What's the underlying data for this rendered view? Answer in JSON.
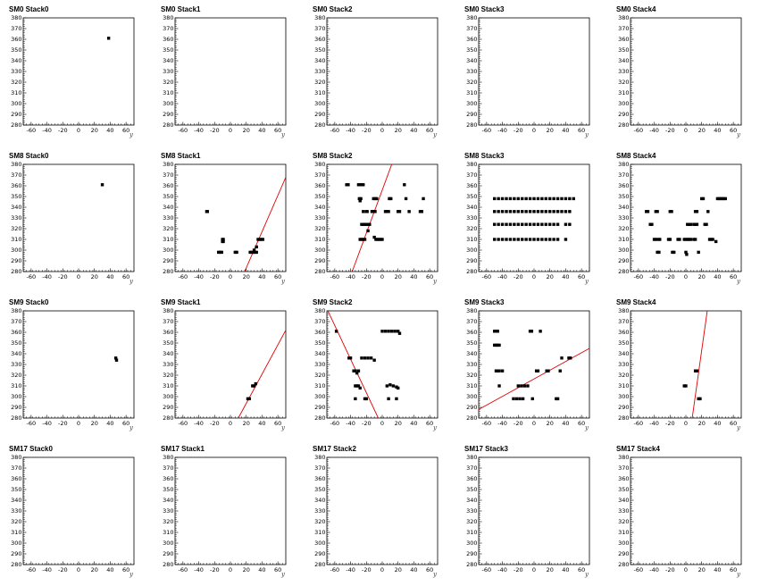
{
  "chart_data": {
    "type": "scatter",
    "xlabel": "y",
    "xlim": [
      -70,
      70
    ],
    "ylim": [
      280,
      380
    ],
    "x_ticks": [
      "-60",
      "-40",
      "-20",
      "0",
      "20",
      "40",
      "60"
    ],
    "y_ticks": [
      "380",
      "370",
      "360",
      "350",
      "340",
      "330",
      "320",
      "310",
      "300",
      "290",
      "280"
    ],
    "fit_line_color": "#e00000",
    "marker_color": "#000000",
    "panels": [
      {
        "title": "SM0 Stack0",
        "points": [
          [
            38,
            361
          ]
        ],
        "lines": []
      },
      {
        "title": "SM0 Stack1",
        "points": [],
        "lines": []
      },
      {
        "title": "SM0 Stack2",
        "points": [],
        "lines": []
      },
      {
        "title": "SM0 Stack3",
        "points": [],
        "lines": []
      },
      {
        "title": "SM0 Stack4",
        "points": [],
        "lines": []
      },
      {
        "title": "SM8 Stack0",
        "points": [
          [
            30,
            361
          ]
        ],
        "lines": []
      },
      {
        "title": "SM8 Stack1",
        "points": [
          [
            -30,
            336
          ],
          [
            -29,
            336
          ],
          [
            -10,
            310
          ],
          [
            -9,
            310
          ],
          [
            -10,
            308
          ],
          [
            -9,
            308
          ],
          [
            -15,
            298
          ],
          [
            -13,
            298
          ],
          [
            -11,
            298
          ],
          [
            6,
            298
          ],
          [
            8,
            298
          ],
          [
            25,
            298
          ],
          [
            27,
            298
          ],
          [
            29,
            298
          ],
          [
            31,
            298
          ],
          [
            33,
            298
          ],
          [
            35,
            310
          ],
          [
            37,
            310
          ],
          [
            39,
            310
          ],
          [
            41,
            310
          ],
          [
            30,
            300
          ],
          [
            33,
            303
          ]
        ],
        "lines": [
          [
            [
              18,
              280
            ],
            [
              70,
              368
            ]
          ]
        ]
      },
      {
        "title": "SM8 Stack2",
        "points": [
          [
            -45,
            361
          ],
          [
            -43,
            361
          ],
          [
            -30,
            361
          ],
          [
            -28,
            361
          ],
          [
            -26,
            361
          ],
          [
            -24,
            361
          ],
          [
            -29,
            348
          ],
          [
            -28,
            346
          ],
          [
            -27,
            348
          ],
          [
            -11,
            348
          ],
          [
            -9,
            348
          ],
          [
            -7,
            348
          ],
          [
            9,
            348
          ],
          [
            11,
            348
          ],
          [
            28,
            361
          ],
          [
            30,
            348
          ],
          [
            52,
            348
          ],
          [
            -24,
            336
          ],
          [
            -20,
            336
          ],
          [
            -19,
            336
          ],
          [
            -13,
            336
          ],
          [
            -11,
            336
          ],
          [
            -10,
            336
          ],
          [
            -9,
            336
          ],
          [
            4,
            336
          ],
          [
            6,
            336
          ],
          [
            8,
            336
          ],
          [
            20,
            336
          ],
          [
            22,
            336
          ],
          [
            34,
            336
          ],
          [
            48,
            336
          ],
          [
            50,
            336
          ],
          [
            -26,
            324
          ],
          [
            -24,
            324
          ],
          [
            -22,
            324
          ],
          [
            -20,
            324
          ],
          [
            -18,
            324
          ],
          [
            -16,
            324
          ],
          [
            -28,
            310
          ],
          [
            -26,
            310
          ],
          [
            -24,
            310
          ],
          [
            -22,
            310
          ],
          [
            -8,
            310
          ],
          [
            -6,
            310
          ],
          [
            -4,
            310
          ],
          [
            -2,
            310
          ],
          [
            0,
            310
          ],
          [
            -10,
            312
          ],
          [
            -18,
            318
          ]
        ],
        "lines": [
          [
            [
              -38,
              280
            ],
            [
              12,
              380
            ]
          ]
        ]
      },
      {
        "title": "SM8 Stack3",
        "points": [
          [
            -50,
            348
          ],
          [
            -45,
            348
          ],
          [
            -40,
            348
          ],
          [
            -35,
            348
          ],
          [
            -30,
            348
          ],
          [
            -25,
            348
          ],
          [
            -20,
            348
          ],
          [
            -15,
            348
          ],
          [
            -10,
            348
          ],
          [
            -5,
            348
          ],
          [
            0,
            348
          ],
          [
            5,
            348
          ],
          [
            10,
            348
          ],
          [
            15,
            348
          ],
          [
            20,
            348
          ],
          [
            25,
            348
          ],
          [
            30,
            348
          ],
          [
            35,
            348
          ],
          [
            40,
            348
          ],
          [
            45,
            348
          ],
          [
            50,
            348
          ],
          [
            -50,
            336
          ],
          [
            -45,
            336
          ],
          [
            -40,
            336
          ],
          [
            -35,
            336
          ],
          [
            -30,
            336
          ],
          [
            -25,
            336
          ],
          [
            -20,
            336
          ],
          [
            -15,
            336
          ],
          [
            -10,
            336
          ],
          [
            -5,
            336
          ],
          [
            0,
            336
          ],
          [
            5,
            336
          ],
          [
            10,
            336
          ],
          [
            15,
            336
          ],
          [
            20,
            336
          ],
          [
            25,
            336
          ],
          [
            30,
            336
          ],
          [
            35,
            336
          ],
          [
            40,
            336
          ],
          [
            45,
            336
          ],
          [
            -50,
            324
          ],
          [
            -45,
            324
          ],
          [
            -40,
            324
          ],
          [
            -35,
            324
          ],
          [
            -30,
            324
          ],
          [
            -25,
            324
          ],
          [
            -20,
            324
          ],
          [
            -15,
            324
          ],
          [
            -10,
            324
          ],
          [
            -5,
            324
          ],
          [
            0,
            324
          ],
          [
            5,
            324
          ],
          [
            10,
            324
          ],
          [
            15,
            324
          ],
          [
            20,
            324
          ],
          [
            25,
            324
          ],
          [
            30,
            324
          ],
          [
            40,
            324
          ],
          [
            45,
            324
          ],
          [
            -50,
            310
          ],
          [
            -45,
            310
          ],
          [
            -40,
            310
          ],
          [
            -35,
            310
          ],
          [
            -30,
            310
          ],
          [
            -25,
            310
          ],
          [
            -20,
            310
          ],
          [
            -15,
            310
          ],
          [
            -10,
            310
          ],
          [
            -5,
            310
          ],
          [
            0,
            310
          ],
          [
            5,
            310
          ],
          [
            10,
            310
          ],
          [
            15,
            310
          ],
          [
            20,
            310
          ],
          [
            25,
            310
          ],
          [
            30,
            310
          ],
          [
            40,
            310
          ]
        ],
        "lines": []
      },
      {
        "title": "SM8 Stack4",
        "points": [
          [
            -50,
            336
          ],
          [
            -48,
            336
          ],
          [
            -38,
            336
          ],
          [
            -36,
            336
          ],
          [
            -20,
            336
          ],
          [
            -18,
            336
          ],
          [
            12,
            336
          ],
          [
            14,
            336
          ],
          [
            28,
            336
          ],
          [
            40,
            348
          ],
          [
            42,
            348
          ],
          [
            44,
            348
          ],
          [
            46,
            348
          ],
          [
            48,
            348
          ],
          [
            50,
            348
          ],
          [
            20,
            348
          ],
          [
            22,
            348
          ],
          [
            -45,
            324
          ],
          [
            -43,
            324
          ],
          [
            2,
            324
          ],
          [
            4,
            324
          ],
          [
            6,
            324
          ],
          [
            10,
            324
          ],
          [
            12,
            324
          ],
          [
            14,
            324
          ],
          [
            24,
            324
          ],
          [
            26,
            324
          ],
          [
            -40,
            310
          ],
          [
            -38,
            310
          ],
          [
            -35,
            310
          ],
          [
            -33,
            310
          ],
          [
            -22,
            310
          ],
          [
            -20,
            310
          ],
          [
            -10,
            310
          ],
          [
            -8,
            310
          ],
          [
            -2,
            310
          ],
          [
            0,
            310
          ],
          [
            2,
            310
          ],
          [
            4,
            310
          ],
          [
            6,
            310
          ],
          [
            10,
            310
          ],
          [
            12,
            310
          ],
          [
            30,
            310
          ],
          [
            32,
            310
          ],
          [
            34,
            310
          ],
          [
            38,
            308
          ],
          [
            -36,
            298
          ],
          [
            -34,
            298
          ],
          [
            -17,
            298
          ],
          [
            -15,
            298
          ],
          [
            0,
            298
          ],
          [
            1,
            296
          ],
          [
            16,
            298
          ]
        ],
        "lines": []
      },
      {
        "title": "SM9 Stack0",
        "points": [
          [
            47,
            336
          ],
          [
            48,
            334
          ]
        ],
        "lines": []
      },
      {
        "title": "SM9 Stack1",
        "points": [
          [
            22,
            298
          ],
          [
            24,
            298
          ],
          [
            28,
            310
          ],
          [
            30,
            310
          ],
          [
            32,
            312
          ]
        ],
        "lines": [
          [
            [
              10,
              280
            ],
            [
              70,
              362
            ]
          ]
        ]
      },
      {
        "title": "SM9 Stack2",
        "points": [
          [
            -58,
            361
          ],
          [
            -42,
            336
          ],
          [
            -40,
            336
          ],
          [
            -36,
            324
          ],
          [
            -34,
            324
          ],
          [
            -30,
            324
          ],
          [
            -32,
            322
          ],
          [
            -34,
            310
          ],
          [
            -32,
            310
          ],
          [
            -30,
            310
          ],
          [
            -28,
            308
          ],
          [
            -34,
            298
          ],
          [
            -22,
            298
          ],
          [
            -20,
            298
          ],
          [
            -26,
            336
          ],
          [
            -22,
            336
          ],
          [
            -18,
            336
          ],
          [
            -14,
            336
          ],
          [
            -10,
            334
          ],
          [
            0,
            361
          ],
          [
            4,
            361
          ],
          [
            8,
            361
          ],
          [
            12,
            361
          ],
          [
            16,
            361
          ],
          [
            20,
            361
          ],
          [
            22,
            359
          ],
          [
            6,
            310
          ],
          [
            10,
            311
          ],
          [
            14,
            310
          ],
          [
            18,
            309
          ],
          [
            20,
            308
          ],
          [
            8,
            298
          ],
          [
            18,
            298
          ]
        ],
        "lines": [
          [
            [
              -70,
              382
            ],
            [
              -5,
              280
            ]
          ]
        ]
      },
      {
        "title": "SM9 Stack3",
        "points": [
          [
            -50,
            361
          ],
          [
            -48,
            361
          ],
          [
            -46,
            361
          ],
          [
            -50,
            348
          ],
          [
            -48,
            348
          ],
          [
            -46,
            348
          ],
          [
            -44,
            348
          ],
          [
            -5,
            361
          ],
          [
            -3,
            361
          ],
          [
            8,
            361
          ],
          [
            -48,
            324
          ],
          [
            -46,
            324
          ],
          [
            -44,
            324
          ],
          [
            -40,
            324
          ],
          [
            -44,
            310
          ],
          [
            -20,
            310
          ],
          [
            -16,
            310
          ],
          [
            -12,
            310
          ],
          [
            -8,
            310
          ],
          [
            -26,
            298
          ],
          [
            -22,
            298
          ],
          [
            -18,
            298
          ],
          [
            -14,
            298
          ],
          [
            -2,
            298
          ],
          [
            3,
            324
          ],
          [
            5,
            324
          ],
          [
            16,
            324
          ],
          [
            18,
            324
          ],
          [
            28,
            298
          ],
          [
            30,
            298
          ],
          [
            33,
            324
          ],
          [
            35,
            336
          ],
          [
            44,
            336
          ],
          [
            46,
            336
          ]
        ],
        "lines": [
          [
            [
              -70,
              288
            ],
            [
              70,
              345
            ]
          ]
        ]
      },
      {
        "title": "SM9 Stack4",
        "points": [
          [
            -2,
            310
          ],
          [
            0,
            310
          ],
          [
            12,
            324
          ],
          [
            14,
            324
          ],
          [
            16,
            298
          ],
          [
            18,
            298
          ]
        ],
        "lines": [
          [
            [
              8,
              280
            ],
            [
              27,
              380
            ]
          ]
        ]
      },
      {
        "title": "SM17 Stack0",
        "points": [],
        "lines": []
      },
      {
        "title": "SM17 Stack1",
        "points": [],
        "lines": []
      },
      {
        "title": "SM17 Stack2",
        "points": [],
        "lines": []
      },
      {
        "title": "SM17 Stack3",
        "points": [],
        "lines": []
      },
      {
        "title": "SM17 Stack4",
        "points": [],
        "lines": []
      }
    ]
  }
}
